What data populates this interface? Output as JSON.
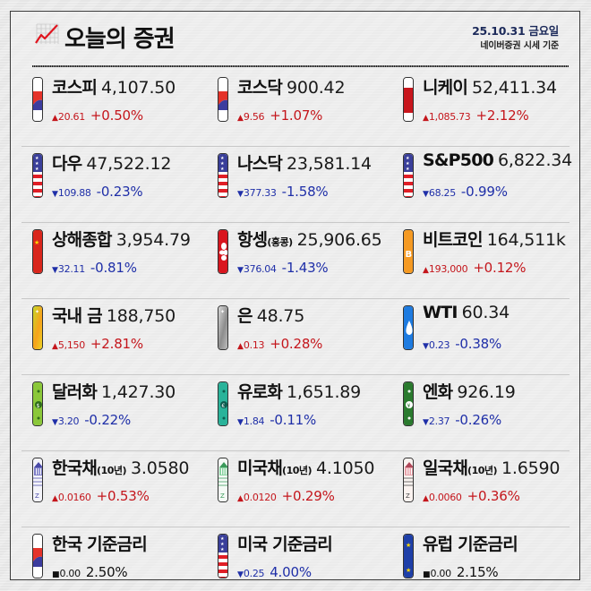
{
  "header": {
    "title": "오늘의 증권",
    "date": "25.10.31 금요일",
    "source": "네이버증권 시세 기준",
    "icon": "chart-up-icon"
  },
  "colors": {
    "up": "#c4161c",
    "down": "#1f2fa8",
    "flat": "#111111",
    "date_text": "#1c2a5a"
  },
  "rows": [
    [
      {
        "name": "코스피",
        "sub": "",
        "price": "4,107.50",
        "dir": "up",
        "delta": "20.61",
        "pct": "+0.50%",
        "icon": "korea-flag-icon"
      },
      {
        "name": "코스닥",
        "sub": "",
        "price": "900.42",
        "dir": "up",
        "delta": "9.56",
        "pct": "+1.07%",
        "icon": "korea-flag-icon"
      },
      {
        "name": "니케이",
        "sub": "",
        "price": "52,411.34",
        "dir": "up",
        "delta": "1,085.73",
        "pct": "+2.12%",
        "icon": "japan-flag-icon"
      }
    ],
    [
      {
        "name": "다우",
        "sub": "",
        "price": "47,522.12",
        "dir": "down",
        "delta": "109.88",
        "pct": "-0.23%",
        "icon": "usa-flag-icon"
      },
      {
        "name": "나스닥",
        "sub": "",
        "price": "23,581.14",
        "dir": "down",
        "delta": "377.33",
        "pct": "-1.58%",
        "icon": "usa-flag-icon"
      },
      {
        "name": "S&P500",
        "sub": "",
        "price": "6,822.34",
        "dir": "down",
        "delta": "68.25",
        "pct": "-0.99%",
        "icon": "usa-flag-icon"
      }
    ],
    [
      {
        "name": "상해종합",
        "sub": "",
        "price": "3,954.79",
        "dir": "down",
        "delta": "32.11",
        "pct": "-0.81%",
        "icon": "china-flag-icon"
      },
      {
        "name": "항셍",
        "sub": "(홍콩)",
        "price": "25,906.65",
        "dir": "down",
        "delta": "376.04",
        "pct": "-1.43%",
        "icon": "hongkong-flag-icon"
      },
      {
        "name": "비트코인",
        "sub": "",
        "price": "164,511k",
        "dir": "up",
        "delta": "193,000",
        "pct": "+0.12%",
        "icon": "bitcoin-icon"
      }
    ],
    [
      {
        "name": "국내 금",
        "sub": "",
        "price": "188,750",
        "dir": "up",
        "delta": "5,150",
        "pct": "+2.81%",
        "icon": "gold-bar-icon"
      },
      {
        "name": "은",
        "sub": "",
        "price": "48.75",
        "dir": "up",
        "delta": "0.13",
        "pct": "+0.28%",
        "icon": "silver-bar-icon"
      },
      {
        "name": "WTI",
        "sub": "",
        "price": "60.34",
        "dir": "down",
        "delta": "0.23",
        "pct": "-0.38%",
        "icon": "oil-drop-icon"
      }
    ],
    [
      {
        "name": "달러화",
        "sub": "",
        "price": "1,427.30",
        "dir": "down",
        "delta": "3.20",
        "pct": "-0.22%",
        "icon": "dollar-bill-icon"
      },
      {
        "name": "유로화",
        "sub": "",
        "price": "1,651.89",
        "dir": "down",
        "delta": "1.84",
        "pct": "-0.11%",
        "icon": "euro-bill-icon"
      },
      {
        "name": "엔화",
        "sub": "",
        "price": "926.19",
        "dir": "down",
        "delta": "2.37",
        "pct": "-0.26%",
        "icon": "yen-bill-icon"
      }
    ],
    [
      {
        "name": "한국채",
        "sub": "(10년)",
        "price": "3.0580",
        "dir": "up",
        "delta": "0.0160",
        "pct": "+0.53%",
        "icon": "korea-bond-icon"
      },
      {
        "name": "미국채",
        "sub": "(10년)",
        "price": "4.1050",
        "dir": "up",
        "delta": "0.0120",
        "pct": "+0.29%",
        "icon": "us-bond-icon"
      },
      {
        "name": "일국채",
        "sub": "(10년)",
        "price": "1.6590",
        "dir": "up",
        "delta": "0.0060",
        "pct": "+0.36%",
        "icon": "japan-bond-icon"
      }
    ],
    [
      {
        "name": "한국 기준금리",
        "sub": "",
        "price": "",
        "dir": "flat",
        "delta": "0.00",
        "pct": "2.50%",
        "icon": "korea-flag-icon"
      },
      {
        "name": "미국 기준금리",
        "sub": "",
        "price": "",
        "dir": "down",
        "delta": "0.25",
        "pct": "4.00%",
        "icon": "usa-flag-icon"
      },
      {
        "name": "유럽 기준금리",
        "sub": "",
        "price": "",
        "dir": "flat",
        "delta": "0.00",
        "pct": "2.15%",
        "icon": "eu-flag-icon"
      }
    ]
  ]
}
